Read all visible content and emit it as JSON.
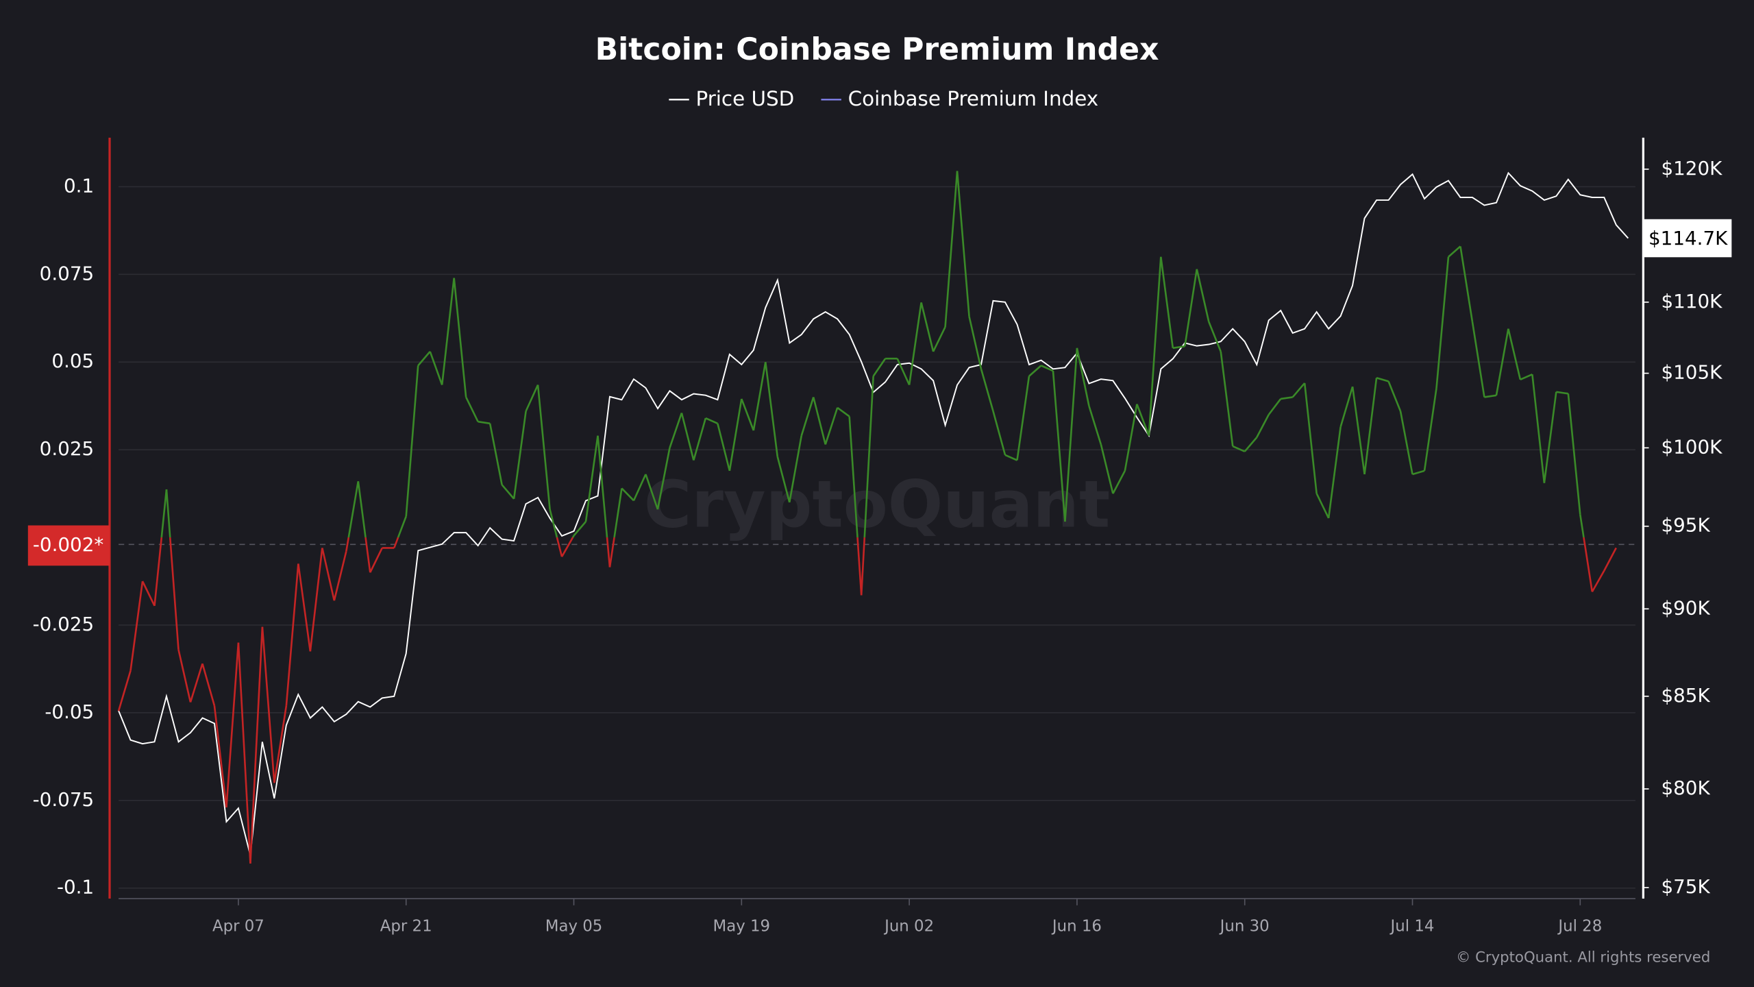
{
  "chart_data": {
    "type": "line",
    "title": "Bitcoin: Coinbase Premium Index",
    "watermark": "CryptoQuant",
    "copyright": "© CryptoQuant. All rights reserved",
    "x": [
      "Mar 28",
      "Mar 29",
      "Mar 30",
      "Mar 31",
      "Apr 01",
      "Apr 02",
      "Apr 03",
      "Apr 04",
      "Apr 05",
      "Apr 06",
      "Apr 07",
      "Apr 08",
      "Apr 09",
      "Apr 10",
      "Apr 11",
      "Apr 12",
      "Apr 13",
      "Apr 14",
      "Apr 15",
      "Apr 16",
      "Apr 17",
      "Apr 18",
      "Apr 19",
      "Apr 20",
      "Apr 21",
      "Apr 22",
      "Apr 23",
      "Apr 24",
      "Apr 25",
      "Apr 26",
      "Apr 27",
      "Apr 28",
      "Apr 29",
      "Apr 30",
      "May 01",
      "May 02",
      "May 03",
      "May 04",
      "May 05",
      "May 06",
      "May 07",
      "May 08",
      "May 09",
      "May 10",
      "May 11",
      "May 12",
      "May 13",
      "May 14",
      "May 15",
      "May 16",
      "May 17",
      "May 18",
      "May 19",
      "May 20",
      "May 21",
      "May 22",
      "May 23",
      "May 24",
      "May 25",
      "May 26",
      "May 27",
      "May 28",
      "May 29",
      "May 30",
      "May 31",
      "Jun 01",
      "Jun 02",
      "Jun 03",
      "Jun 04",
      "Jun 05",
      "Jun 06",
      "Jun 07",
      "Jun 08",
      "Jun 09",
      "Jun 10",
      "Jun 11",
      "Jun 12",
      "Jun 13",
      "Jun 14",
      "Jun 15",
      "Jun 16",
      "Jun 17",
      "Jun 18",
      "Jun 19",
      "Jun 20",
      "Jun 21",
      "Jun 22",
      "Jun 23",
      "Jun 24",
      "Jun 25",
      "Jun 26",
      "Jun 27",
      "Jun 28",
      "Jun 29",
      "Jun 30",
      "Jul 01",
      "Jul 02",
      "Jul 03",
      "Jul 04",
      "Jul 05",
      "Jul 06",
      "Jul 07",
      "Jul 08",
      "Jul 09",
      "Jul 10",
      "Jul 11",
      "Jul 12",
      "Jul 13",
      "Jul 14",
      "Jul 15",
      "Jul 16",
      "Jul 17",
      "Jul 18",
      "Jul 19",
      "Jul 20",
      "Jul 21",
      "Jul 22",
      "Jul 23",
      "Jul 24",
      "Jul 25",
      "Jul 26",
      "Jul 27",
      "Jul 28",
      "Jul 29",
      "Jul 30",
      "Jul 31",
      "Aug 01"
    ],
    "xticks": [
      "Apr 07",
      "Apr 21",
      "May 05",
      "May 19",
      "Jun 02",
      "Jun 16",
      "Jun 30",
      "Jul 14",
      "Jul 28"
    ],
    "ylim": [
      -0.103,
      0.114
    ],
    "yticks": [
      0.1,
      0.075,
      0.05,
      0.025,
      -0.025,
      -0.05,
      -0.075,
      -0.1
    ],
    "y2lim": [
      74460,
      122500
    ],
    "y2scale": "log",
    "y2ticks": [
      {
        "value": 120000,
        "label": "$120K"
      },
      {
        "value": 110000,
        "label": "$110K"
      },
      {
        "value": 105000,
        "label": "$105K"
      },
      {
        "value": 100000,
        "label": "$100K"
      },
      {
        "value": 95000,
        "label": "$95K"
      },
      {
        "value": 90000,
        "label": "$90K"
      },
      {
        "value": 85000,
        "label": "$85K"
      },
      {
        "value": 80000,
        "label": "$80K"
      },
      {
        "value": 75000,
        "label": "$75K"
      }
    ],
    "grid": true,
    "legend": "top",
    "current_value": {
      "value": -0.002,
      "label": "-0.002*",
      "color": "#d42a2a"
    },
    "current_value2": {
      "value": 114700,
      "label": "$114.7K",
      "color": "#ffffff"
    },
    "series": [
      {
        "name": "Price USD",
        "color": "#ffffff",
        "axis": "y2",
        "values": [
          84200,
          82600,
          82400,
          82500,
          85000,
          82500,
          83000,
          83800,
          83500,
          78300,
          79000,
          76600,
          82500,
          79500,
          83400,
          85100,
          83800,
          84400,
          83600,
          84000,
          84700,
          84400,
          84900,
          85000,
          87400,
          93500,
          93700,
          93900,
          94600,
          94600,
          93800,
          94900,
          94200,
          94100,
          96400,
          96800,
          95500,
          94400,
          94700,
          96600,
          96900,
          103400,
          103200,
          104600,
          104000,
          102600,
          103800,
          103200,
          103600,
          103500,
          103200,
          106300,
          105600,
          106600,
          109600,
          111600,
          107100,
          107700,
          108800,
          109300,
          108800,
          107700,
          105800,
          103700,
          104400,
          105600,
          105700,
          105300,
          104500,
          101500,
          104200,
          105400,
          105600,
          110100,
          110000,
          108400,
          105600,
          105900,
          105300,
          105400,
          106400,
          104300,
          104600,
          104500,
          103300,
          102000,
          100800,
          105300,
          106000,
          107100,
          106900,
          107000,
          107200,
          108100,
          107200,
          105600,
          108700,
          109400,
          107800,
          108100,
          109300,
          108100,
          109000,
          111200,
          116200,
          117600,
          117600,
          118800,
          119600,
          117700,
          118600,
          119100,
          117800,
          117800,
          117200,
          117400,
          119700,
          118700,
          118300,
          117600,
          117900,
          119200,
          118000,
          117800,
          117800,
          115700,
          114700
        ]
      },
      {
        "name": "Coinbase Premium Index",
        "color": "#8080e8",
        "positive_color": "#3a8a28",
        "negative_color": "#c42424",
        "values": [
          -0.0495,
          -0.038,
          -0.0125,
          -0.0195,
          0.0137,
          -0.032,
          -0.047,
          -0.036,
          -0.048,
          -0.077,
          -0.03,
          -0.093,
          -0.0255,
          -0.07,
          -0.048,
          -0.0075,
          -0.0325,
          -0.003,
          -0.018,
          -0.004,
          0.016,
          -0.01,
          -0.003,
          -0.003,
          0.006,
          0.049,
          0.053,
          0.0435,
          0.074,
          0.04,
          0.033,
          0.0325,
          0.015,
          0.011,
          0.036,
          0.0435,
          0.008,
          -0.0055,
          0.0005,
          0.0045,
          0.029,
          -0.0085,
          0.014,
          0.0105,
          0.018,
          0.008,
          0.0255,
          0.0355,
          0.022,
          0.034,
          0.0325,
          0.019,
          0.0395,
          0.0305,
          0.05,
          0.023,
          0.01,
          0.029,
          0.04,
          0.0265,
          0.037,
          0.0345,
          -0.0165,
          0.046,
          0.051,
          0.051,
          0.0435,
          0.067,
          0.053,
          0.06,
          0.1045,
          0.063,
          0.048,
          0.036,
          0.0235,
          0.022,
          0.046,
          0.049,
          0.0475,
          0.0045,
          0.054,
          0.0375,
          0.0265,
          0.0125,
          0.019,
          0.038,
          0.029,
          0.08,
          0.054,
          0.0545,
          0.0765,
          0.0615,
          0.053,
          0.026,
          0.0245,
          0.0285,
          0.035,
          0.0395,
          0.04,
          0.044,
          0.0125,
          0.0055,
          0.0315,
          0.043,
          0.018,
          0.0455,
          0.0445,
          0.036,
          0.018,
          0.019,
          0.0425,
          0.08,
          0.083,
          0.0615,
          0.04,
          0.0405,
          0.0595,
          0.045,
          0.0465,
          0.0155,
          0.0415,
          0.041,
          0.0065,
          -0.0155,
          -0.0095,
          -0.003,
          null
        ]
      }
    ]
  }
}
